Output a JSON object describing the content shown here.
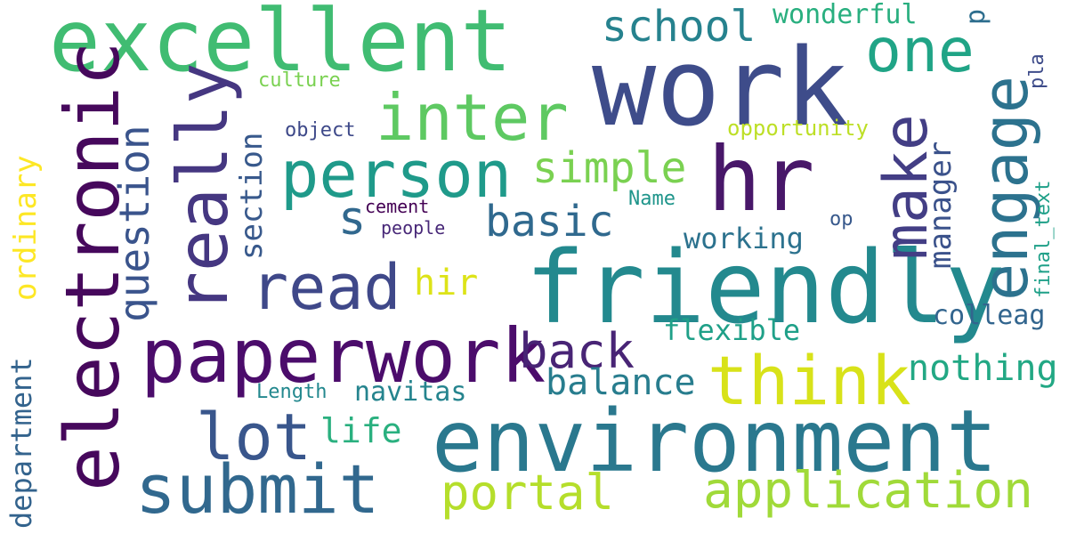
{
  "words": [
    {
      "text": "work",
      "color": "#3e4c8a"
    },
    {
      "text": "excellent",
      "color": "#40bc72"
    },
    {
      "text": "friendly",
      "color": "#23898e"
    },
    {
      "text": "environment",
      "color": "#2a788e"
    },
    {
      "text": "electronic",
      "color": "#46085c"
    },
    {
      "text": "paperwork",
      "color": "#4b0c6b"
    },
    {
      "text": "hr",
      "color": "#481769"
    },
    {
      "text": "person",
      "color": "#1f9a8a"
    },
    {
      "text": "think",
      "color": "#d8e219"
    },
    {
      "text": "submit",
      "color": "#31688e"
    },
    {
      "text": "really",
      "color": "#453781"
    },
    {
      "text": "inter",
      "color": "#5ec962"
    },
    {
      "text": "engage",
      "color": "#2c728e"
    },
    {
      "text": "make",
      "color": "#433e85"
    },
    {
      "text": "application",
      "color": "#a0da39"
    },
    {
      "text": "lot",
      "color": "#39568c"
    },
    {
      "text": "read",
      "color": "#3f4889"
    },
    {
      "text": "one",
      "color": "#20a486"
    },
    {
      "text": "question",
      "color": "#3a548c"
    },
    {
      "text": "portal",
      "color": "#b5de2b"
    },
    {
      "text": "back",
      "color": "#482475"
    },
    {
      "text": "school",
      "color": "#26828e"
    },
    {
      "text": "simple",
      "color": "#7ad151"
    },
    {
      "text": "basic",
      "color": "#30698e"
    },
    {
      "text": "nothing",
      "color": "#22a884"
    },
    {
      "text": "balance",
      "color": "#287d8e"
    },
    {
      "text": "section",
      "color": "#38598c"
    },
    {
      "text": "manager",
      "color": "#3b528b"
    },
    {
      "text": "ordinary",
      "color": "#fde725"
    },
    {
      "text": "department",
      "color": "#33638d"
    },
    {
      "text": "wonderful",
      "color": "#29af7f"
    },
    {
      "text": "life",
      "color": "#2ab07f"
    },
    {
      "text": "navitas",
      "color": "#25848e"
    },
    {
      "text": "flexible",
      "color": "#1fa088"
    },
    {
      "text": "working",
      "color": "#2c728e"
    },
    {
      "text": "colleag",
      "color": "#32658e"
    },
    {
      "text": "hir",
      "color": "#dde318"
    },
    {
      "text": "s",
      "color": "#31688e"
    },
    {
      "text": "opportunity",
      "color": "#bddf26"
    },
    {
      "text": "final_text",
      "color": "#1fa088"
    },
    {
      "text": "culture",
      "color": "#7ad151"
    },
    {
      "text": "object",
      "color": "#3e4989"
    },
    {
      "text": "Name",
      "color": "#1f958b"
    },
    {
      "text": "Length",
      "color": "#23888e"
    },
    {
      "text": "people",
      "color": "#482878"
    },
    {
      "text": "cement",
      "color": "#440154"
    },
    {
      "text": "op",
      "color": "#38598c"
    },
    {
      "text": "pla",
      "color": "#3e4c8a"
    },
    {
      "text": "p",
      "color": "#2e6e8e"
    }
  ]
}
